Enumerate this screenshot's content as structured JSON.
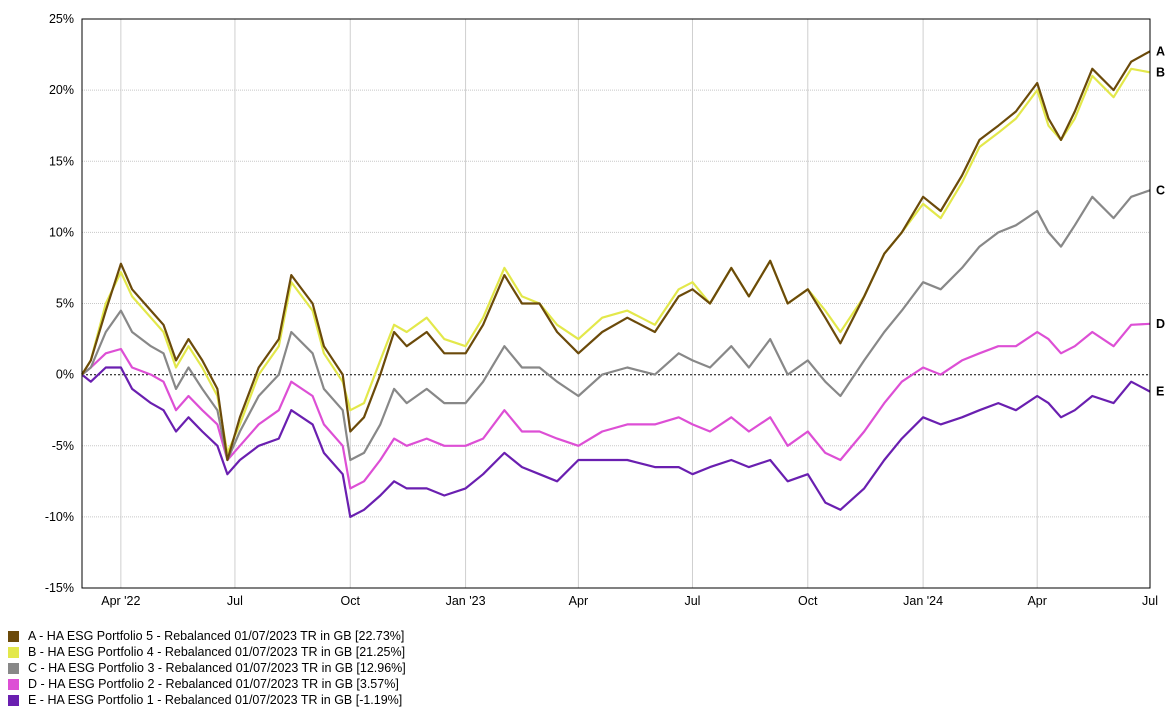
{
  "chart_data": {
    "type": "line",
    "x_ticks": [
      "Apr '22",
      "Jul",
      "Oct",
      "Jan '23",
      "Apr",
      "Jul",
      "Oct",
      "Jan '24",
      "Apr",
      "Jul"
    ],
    "y_ticks": [
      "25%",
      "20%",
      "15%",
      "10%",
      "5%",
      "0%",
      "-5%",
      "-10%",
      "-15%"
    ],
    "ylim": [
      -15,
      25
    ],
    "grid": true,
    "legend_position": "bottom",
    "x_points": [
      "2022-03-01",
      "2022-03-08",
      "2022-03-20",
      "2022-04-01",
      "2022-04-10",
      "2022-04-25",
      "2022-05-05",
      "2022-05-15",
      "2022-05-25",
      "2022-06-05",
      "2022-06-17",
      "2022-06-25",
      "2022-07-05",
      "2022-07-20",
      "2022-08-05",
      "2022-08-15",
      "2022-09-01",
      "2022-09-10",
      "2022-09-25",
      "2022-10-01",
      "2022-10-12",
      "2022-10-25",
      "2022-11-05",
      "2022-11-15",
      "2022-12-01",
      "2022-12-15",
      "2023-01-01",
      "2023-01-15",
      "2023-02-01",
      "2023-02-15",
      "2023-03-01",
      "2023-03-15",
      "2023-04-01",
      "2023-04-20",
      "2023-05-10",
      "2023-06-01",
      "2023-06-20",
      "2023-07-01",
      "2023-07-15",
      "2023-08-01",
      "2023-08-15",
      "2023-09-01",
      "2023-09-15",
      "2023-10-01",
      "2023-10-15",
      "2023-10-27",
      "2023-11-15",
      "2023-12-01",
      "2023-12-15",
      "2024-01-01",
      "2024-01-15",
      "2024-02-01",
      "2024-02-15",
      "2024-03-01",
      "2024-03-15",
      "2024-04-01",
      "2024-04-10",
      "2024-04-20",
      "2024-05-01",
      "2024-05-15",
      "2024-06-01",
      "2024-06-15",
      "2024-06-30"
    ],
    "series": [
      {
        "name": "A",
        "values": [
          0,
          1.0,
          4.5,
          7.8,
          6.0,
          4.5,
          3.5,
          1.0,
          2.5,
          1.0,
          -1.0,
          -6.0,
          -3.0,
          0.5,
          2.5,
          7.0,
          5.0,
          2.0,
          0.0,
          -4.0,
          -3.0,
          0.0,
          3.0,
          2.0,
          3.0,
          1.5,
          1.5,
          3.5,
          7.0,
          5.0,
          5.0,
          3.0,
          1.5,
          3.0,
          4.0,
          3.0,
          5.5,
          6.0,
          5.0,
          7.5,
          5.5,
          8.0,
          5.0,
          6.0,
          4.0,
          2.2,
          5.5,
          8.5,
          10.0,
          12.5,
          11.5,
          14.0,
          16.5,
          17.5,
          18.5,
          20.5,
          18.0,
          16.5,
          18.5,
          21.5,
          20.0,
          22.0,
          22.73
        ]
      },
      {
        "name": "B",
        "values": [
          0,
          1.0,
          5.0,
          7.2,
          5.5,
          4.0,
          3.0,
          0.5,
          2.0,
          0.5,
          -1.5,
          -5.5,
          -3.5,
          0.0,
          2.0,
          6.5,
          4.5,
          1.5,
          -0.5,
          -2.5,
          -2.0,
          1.0,
          3.5,
          3.0,
          4.0,
          2.5,
          2.0,
          4.0,
          7.5,
          5.5,
          5.0,
          3.5,
          2.5,
          4.0,
          4.5,
          3.5,
          6.0,
          6.5,
          5.0,
          7.5,
          5.5,
          8.0,
          5.0,
          6.0,
          4.5,
          3.0,
          5.5,
          8.5,
          10.0,
          12.0,
          11.0,
          13.5,
          16.0,
          17.0,
          18.0,
          20.0,
          17.5,
          16.5,
          18.0,
          21.0,
          19.5,
          21.5,
          21.25
        ]
      },
      {
        "name": "C",
        "values": [
          0,
          0.5,
          3.0,
          4.5,
          3.0,
          2.0,
          1.5,
          -1.0,
          0.5,
          -1.0,
          -2.5,
          -6.0,
          -4.0,
          -1.5,
          0.0,
          3.0,
          1.5,
          -1.0,
          -2.5,
          -6.0,
          -5.5,
          -3.5,
          -1.0,
          -2.0,
          -1.0,
          -2.0,
          -2.0,
          -0.5,
          2.0,
          0.5,
          0.5,
          -0.5,
          -1.5,
          0.0,
          0.5,
          0.0,
          1.5,
          1.0,
          0.5,
          2.0,
          0.5,
          2.5,
          0.0,
          1.0,
          -0.5,
          -1.5,
          1.0,
          3.0,
          4.5,
          6.5,
          6.0,
          7.5,
          9.0,
          10.0,
          10.5,
          11.5,
          10.0,
          9.0,
          10.5,
          12.5,
          11.0,
          12.5,
          12.96
        ]
      },
      {
        "name": "D",
        "values": [
          0,
          0.5,
          1.5,
          1.8,
          0.5,
          0.0,
          -0.5,
          -2.5,
          -1.5,
          -2.5,
          -3.5,
          -6.0,
          -5.0,
          -3.5,
          -2.5,
          -0.5,
          -1.5,
          -3.5,
          -5.0,
          -8.0,
          -7.5,
          -6.0,
          -4.5,
          -5.0,
          -4.5,
          -5.0,
          -5.0,
          -4.5,
          -2.5,
          -4.0,
          -4.0,
          -4.5,
          -5.0,
          -4.0,
          -3.5,
          -3.5,
          -3.0,
          -3.5,
          -4.0,
          -3.0,
          -4.0,
          -3.0,
          -5.0,
          -4.0,
          -5.5,
          -6.0,
          -4.0,
          -2.0,
          -0.5,
          0.5,
          0.0,
          1.0,
          1.5,
          2.0,
          2.0,
          3.0,
          2.5,
          1.5,
          2.0,
          3.0,
          2.0,
          3.5,
          3.57
        ]
      },
      {
        "name": "E",
        "values": [
          0,
          -0.5,
          0.5,
          0.5,
          -1.0,
          -2.0,
          -2.5,
          -4.0,
          -3.0,
          -4.0,
          -5.0,
          -7.0,
          -6.0,
          -5.0,
          -4.5,
          -2.5,
          -3.5,
          -5.5,
          -7.0,
          -10.0,
          -9.5,
          -8.5,
          -7.5,
          -8.0,
          -8.0,
          -8.5,
          -8.0,
          -7.0,
          -5.5,
          -6.5,
          -7.0,
          -7.5,
          -6.0,
          -6.0,
          -6.0,
          -6.5,
          -6.5,
          -7.0,
          -6.5,
          -6.0,
          -6.5,
          -6.0,
          -7.5,
          -7.0,
          -9.0,
          -9.5,
          -8.0,
          -6.0,
          -4.5,
          -3.0,
          -3.5,
          -3.0,
          -2.5,
          -2.0,
          -2.5,
          -1.5,
          -2.0,
          -3.0,
          -2.5,
          -1.5,
          -2.0,
          -0.5,
          -1.19
        ]
      }
    ],
    "colors": [
      "#6b4a0a",
      "#e3e84b",
      "#888888",
      "#dd4fd5",
      "#6a1fb0"
    ],
    "legend": [
      "A - HA ESG Portfolio 5 - Rebalanced 01/07/2023 TR in GB [22.73%]",
      "B - HA ESG Portfolio 4 - Rebalanced 01/07/2023 TR in GB [21.25%]",
      "C - HA ESG Portfolio 3 - Rebalanced 01/07/2023 TR in GB [12.96%]",
      "D - HA ESG Portfolio 2 - Rebalanced 01/07/2023 TR in GB [3.57%]",
      "E - HA ESG Portfolio 1 - Rebalanced 01/07/2023 TR in GB [-1.19%]"
    ]
  }
}
